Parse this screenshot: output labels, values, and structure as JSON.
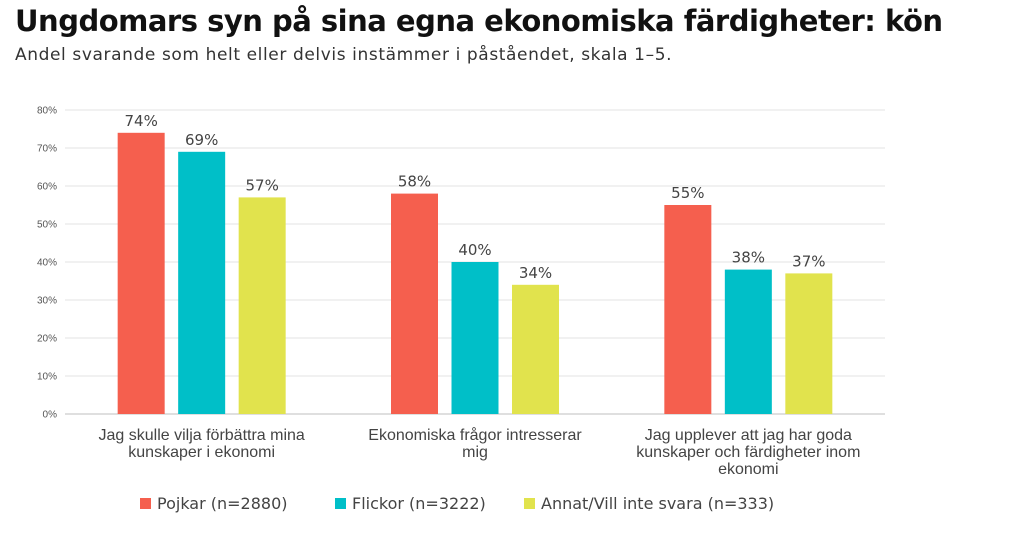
{
  "header": {
    "title": "Ungdomars syn på sina egna ekonomiska färdigheter: kön",
    "subtitle": "Andel svarande som helt eller delvis instämmer i påståendet, skala 1–5."
  },
  "chart_data": {
    "type": "bar",
    "categories": [
      [
        "Jag skulle vilja förbättra mina",
        "kunskaper i ekonomi"
      ],
      [
        "Ekonomiska frågor intresserar",
        "mig"
      ],
      [
        "Jag upplever att jag har goda",
        "kunskaper och färdigheter inom",
        "ekonomi"
      ]
    ],
    "series": [
      {
        "name": "Pojkar (n=2880)",
        "color": "#F55F4E",
        "values": [
          74,
          58,
          55
        ],
        "labels": [
          "74%",
          "58%",
          "55%"
        ]
      },
      {
        "name": "Flickor (n=3222)",
        "color": "#00BFC8",
        "values": [
          69,
          40,
          38
        ],
        "labels": [
          "69%",
          "40%",
          "38%"
        ]
      },
      {
        "name": "Annat/Vill inte svara (n=333)",
        "color": "#E1E34D",
        "values": [
          57,
          34,
          37
        ],
        "labels": [
          "57%",
          "34%",
          "37%"
        ]
      }
    ],
    "ylim": [
      0,
      80
    ],
    "yticks": [
      "0%",
      "10%",
      "20%",
      "30%",
      "40%",
      "50%",
      "60%",
      "70%",
      "80%"
    ],
    "grid": true,
    "legend": "bottom"
  }
}
